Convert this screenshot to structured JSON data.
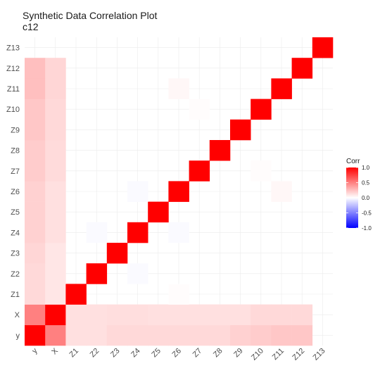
{
  "chart_data": {
    "type": "heatmap",
    "title": "Synthetic Data Correlation Plot",
    "subtitle": "c12",
    "variables": [
      "y",
      "X",
      "Z1",
      "Z2",
      "Z3",
      "Z4",
      "Z5",
      "Z6",
      "Z7",
      "Z8",
      "Z9",
      "Z10",
      "Z11",
      "Z12",
      "Z13"
    ],
    "matrix": [
      [
        1.0,
        0.5,
        0.12,
        0.12,
        0.15,
        0.15,
        0.15,
        0.15,
        0.15,
        0.15,
        0.18,
        0.2,
        0.22,
        0.22,
        null
      ],
      [
        0.5,
        1.0,
        0.12,
        0.12,
        0.13,
        0.13,
        0.12,
        0.12,
        0.12,
        0.12,
        0.12,
        0.15,
        0.15,
        0.15,
        null
      ],
      [
        0.15,
        0.1,
        1.0,
        0.0,
        0.0,
        0.0,
        0.0,
        0.01,
        0.0,
        0.0,
        0.0,
        0.0,
        0.0,
        0.0,
        null
      ],
      [
        0.15,
        0.1,
        0.0,
        1.0,
        0.0,
        -0.02,
        0.0,
        0.0,
        0.0,
        0.0,
        0.0,
        0.0,
        0.0,
        0.0,
        null
      ],
      [
        0.16,
        0.1,
        0.0,
        0.0,
        1.0,
        0.0,
        0.0,
        0.0,
        0.0,
        0.0,
        0.0,
        0.0,
        0.0,
        0.0,
        null
      ],
      [
        0.18,
        0.12,
        0.0,
        -0.02,
        0.0,
        1.0,
        0.0,
        -0.02,
        0.0,
        0.0,
        0.0,
        0.0,
        0.0,
        0.0,
        null
      ],
      [
        0.18,
        0.12,
        0.0,
        0.0,
        0.0,
        0.0,
        1.0,
        0.0,
        0.0,
        0.0,
        0.0,
        0.0,
        0.0,
        0.0,
        null
      ],
      [
        0.18,
        0.12,
        0.0,
        0.0,
        0.0,
        -0.02,
        0.0,
        1.0,
        0.0,
        0.0,
        0.0,
        0.0,
        0.03,
        0.0,
        null
      ],
      [
        0.2,
        0.14,
        0.0,
        0.0,
        0.0,
        0.0,
        0.0,
        0.0,
        1.0,
        0.0,
        0.0,
        0.01,
        0.0,
        0.0,
        null
      ],
      [
        0.2,
        0.14,
        0.0,
        0.0,
        0.0,
        0.0,
        0.0,
        0.0,
        0.0,
        1.0,
        0.0,
        0.0,
        0.0,
        0.0,
        null
      ],
      [
        0.22,
        0.15,
        0.0,
        0.0,
        0.0,
        0.0,
        0.0,
        0.0,
        0.0,
        0.0,
        1.0,
        0.0,
        0.0,
        0.0,
        null
      ],
      [
        0.22,
        0.15,
        0.0,
        0.0,
        0.0,
        0.0,
        0.0,
        0.0,
        0.01,
        0.0,
        0.0,
        1.0,
        0.0,
        0.0,
        null
      ],
      [
        0.25,
        0.16,
        0.0,
        0.0,
        0.0,
        0.0,
        0.0,
        0.03,
        0.0,
        0.0,
        0.0,
        0.0,
        1.0,
        0.0,
        null
      ],
      [
        0.25,
        0.16,
        0.0,
        0.0,
        0.0,
        0.0,
        0.0,
        0.0,
        0.0,
        0.0,
        0.0,
        0.0,
        0.0,
        1.0,
        null
      ],
      [
        null,
        null,
        null,
        null,
        null,
        null,
        null,
        null,
        null,
        null,
        null,
        null,
        null,
        null,
        1.0
      ]
    ],
    "legend": {
      "title": "Corr",
      "ticks": [
        1.0,
        0.5,
        0.0,
        -0.5,
        -1.0
      ],
      "tick_labels": [
        "1.0",
        "0.5",
        "0.0",
        "-0.5",
        "-1.0"
      ],
      "placement": "right",
      "colors": {
        "high": "#ff0000",
        "mid": "#ffffff",
        "low": "#0000ff"
      }
    },
    "grid": true
  }
}
